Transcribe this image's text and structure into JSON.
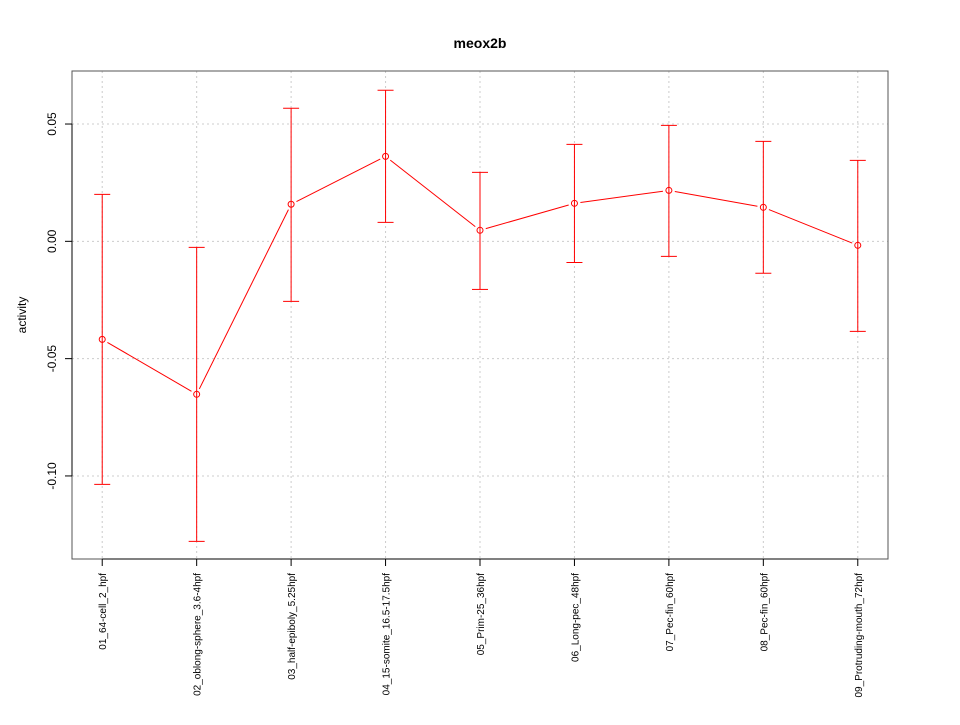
{
  "chart_data": {
    "type": "line",
    "title": "meox2b",
    "xlabel": "",
    "ylabel": "activity",
    "categories": [
      "01_64-cell_2_hpf",
      "02_oblong-sphere_3.6-4hpf",
      "03_half-epiboly_5.25hpf",
      "04_15-somite_16.5-17.5hpf",
      "05_Prim-25_36hpf",
      "06_Long-pec_48hpf",
      "07_Pec-fin_60hpf",
      "08_Pec-fin_60hpf",
      "09_Protruding-mouth_72hpf"
    ],
    "series": [
      {
        "name": "meox2b",
        "color": "#ff0000",
        "values": [
          -0.0418,
          -0.0652,
          0.0158,
          0.0362,
          0.0047,
          0.0162,
          0.0217,
          0.0145,
          -0.0017
        ],
        "upper": [
          0.02,
          -0.0026,
          0.0567,
          0.0644,
          0.0294,
          0.0413,
          0.0494,
          0.0426,
          0.0345
        ],
        "lower": [
          -0.1036,
          -0.1279,
          -0.0256,
          0.0081,
          -0.0205,
          -0.009,
          -0.0064,
          -0.0136,
          -0.0384
        ]
      }
    ],
    "yticks": [
      -0.1,
      -0.05,
      0.0,
      0.05
    ],
    "ytick_labels": [
      "-0.10",
      "-0.05",
      "0.00",
      "0.05"
    ],
    "ylim": [
      -0.1354,
      0.0726
    ],
    "grid": true,
    "legend": "none"
  }
}
